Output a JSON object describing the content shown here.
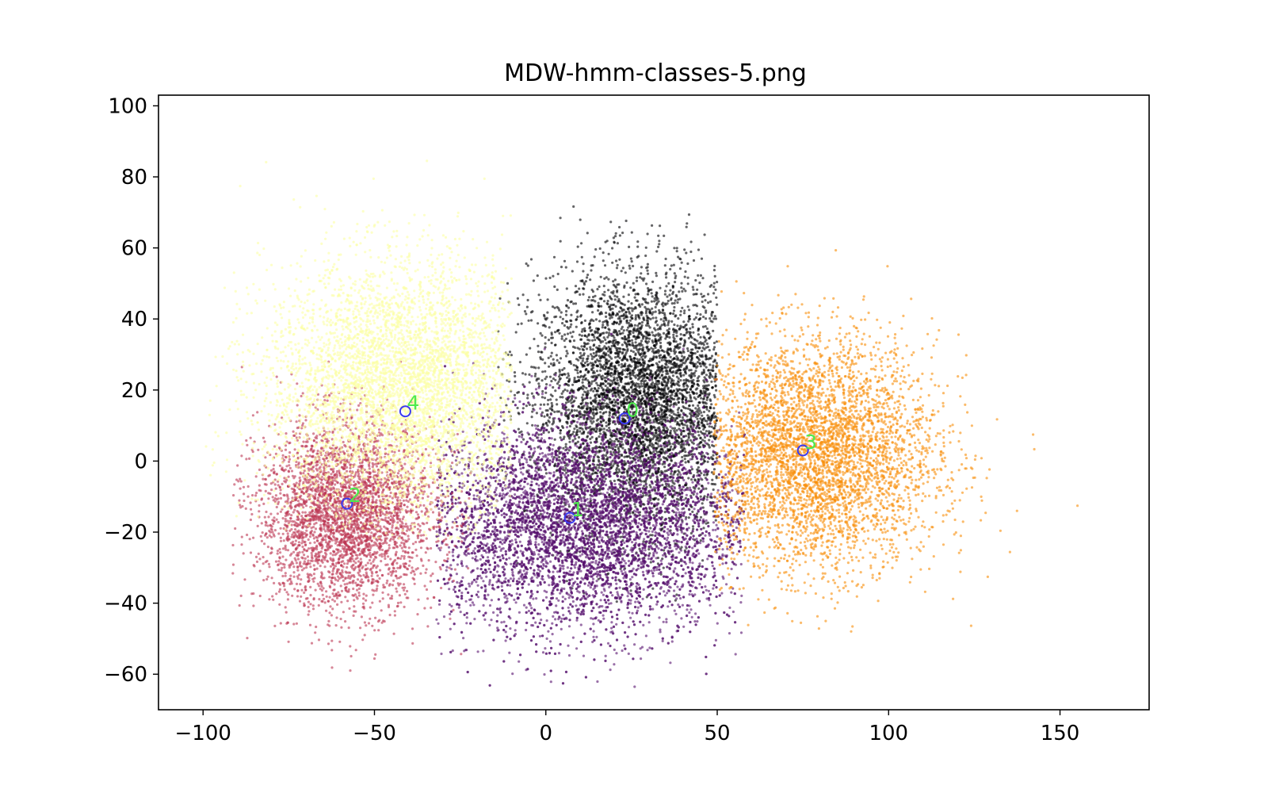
{
  "chart_data": {
    "type": "scatter",
    "title": "MDW-hmm-classes-5.png",
    "xlabel": "",
    "ylabel": "",
    "xlim": [
      -113,
      176
    ],
    "ylim": [
      -70,
      103
    ],
    "xticks": [
      -100,
      -50,
      0,
      50,
      100,
      150
    ],
    "yticks": [
      -60,
      -40,
      -20,
      0,
      20,
      40,
      60,
      80,
      100
    ],
    "xtick_labels": [
      "−100",
      "−50",
      "0",
      "50",
      "100",
      "150"
    ],
    "ytick_labels": [
      "−60",
      "−40",
      "−20",
      "0",
      "20",
      "40",
      "60",
      "80",
      "100"
    ],
    "grid": false,
    "legend": false,
    "series": [
      {
        "cluster": "0",
        "color": "#000004",
        "count": 4800,
        "center": [
          28,
          17
        ],
        "spread": [
          16,
          18
        ],
        "x_range": [
          -14,
          50
        ],
        "y_range": [
          -40,
          73
        ]
      },
      {
        "cluster": "1",
        "color": "#57106e",
        "count": 7000,
        "center": [
          10,
          -18
        ],
        "spread": [
          25,
          15
        ],
        "x_range": [
          -32,
          58
        ],
        "y_range": [
          -64,
          40
        ]
      },
      {
        "cluster": "2",
        "color": "#bc3754",
        "count": 3600,
        "center": [
          -58,
          -15
        ],
        "spread": [
          13,
          13
        ],
        "x_range": [
          -92,
          -20
        ],
        "y_range": [
          -61,
          30
        ]
      },
      {
        "cluster": "3",
        "color": "#f98e09",
        "count": 4400,
        "center": [
          78,
          2
        ],
        "spread": [
          18,
          16
        ],
        "x_range": [
          49,
          165
        ],
        "y_range": [
          -48,
          74
        ]
      },
      {
        "cluster": "4",
        "color": "#fcffa4",
        "count": 5000,
        "center": [
          -42,
          20
        ],
        "spread": [
          20,
          18
        ],
        "x_range": [
          -100,
          -10
        ],
        "y_range": [
          -22,
          95
        ]
      }
    ],
    "centroids": [
      {
        "label": "0",
        "x": 23,
        "y": 12
      },
      {
        "label": "1",
        "x": 7,
        "y": -16
      },
      {
        "label": "2",
        "x": -58,
        "y": -12
      },
      {
        "label": "3",
        "x": 75,
        "y": 3
      },
      {
        "label": "4",
        "x": -41,
        "y": 14
      }
    ],
    "centroid_marker_color": "#3a3af0",
    "centroid_label_color": "#4dea4d"
  }
}
